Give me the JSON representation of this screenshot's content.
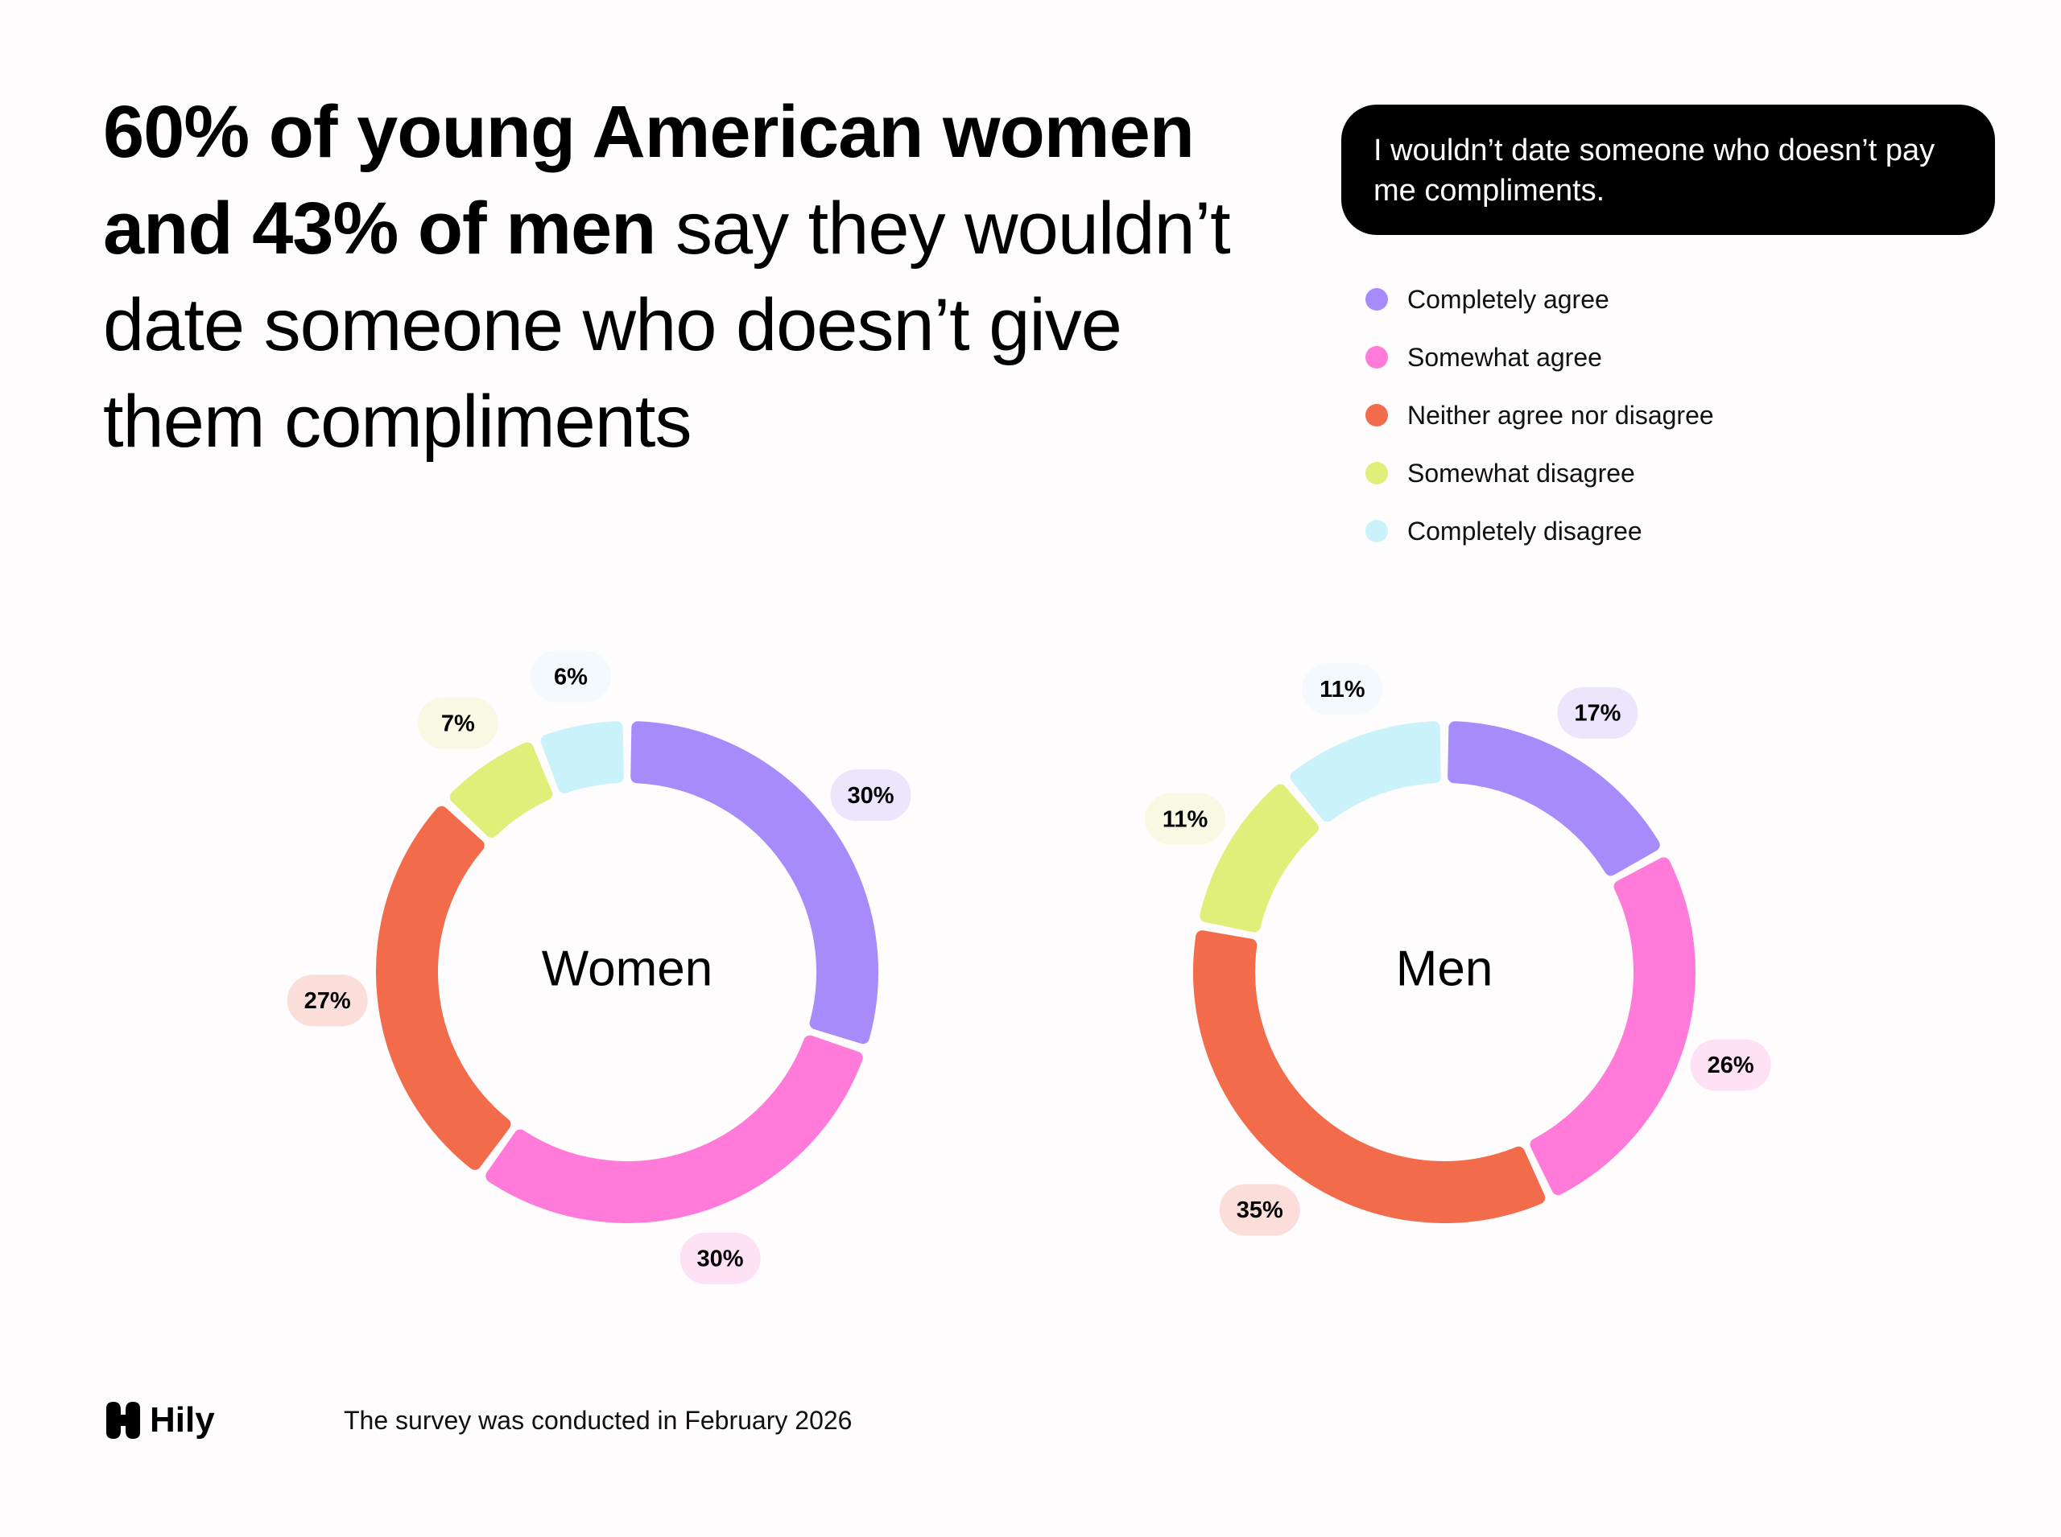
{
  "title": {
    "bold": "60% of young American women and 43% of men",
    "regular": "say they wouldn’t date someone who doesn’t give them compliments"
  },
  "question": "I wouldn’t date someone who doesn’t pay me compliments.",
  "chart_data": [
    {
      "type": "pie",
      "center_label": "Women",
      "categories": [
        "Completely agree",
        "Somewhat agree",
        "Neither agree nor disagree",
        "Somewhat disagree",
        "Completely disagree"
      ],
      "colors": [
        "#a78bfa",
        "#ff7ad9",
        "#f26b4a",
        "#e0ef7a",
        "#c9f2fb"
      ],
      "values": [
        30,
        30,
        27,
        7,
        6
      ],
      "value_labels": [
        "30%",
        "30%",
        "27%",
        "7%",
        "6%"
      ]
    },
    {
      "type": "pie",
      "center_label": "Men",
      "categories": [
        "Completely agree",
        "Somewhat agree",
        "Neither agree nor disagree",
        "Somewhat disagree",
        "Completely disagree"
      ],
      "colors": [
        "#a78bfa",
        "#ff7ad9",
        "#f26b4a",
        "#e0ef7a",
        "#c9f2fb"
      ],
      "values": [
        17,
        26,
        35,
        11,
        11
      ],
      "value_labels": [
        "17%",
        "26%",
        "35%",
        "11%",
        "11%"
      ]
    }
  ],
  "logo": "Hily",
  "footnote": "The survey was conducted in February 2026"
}
